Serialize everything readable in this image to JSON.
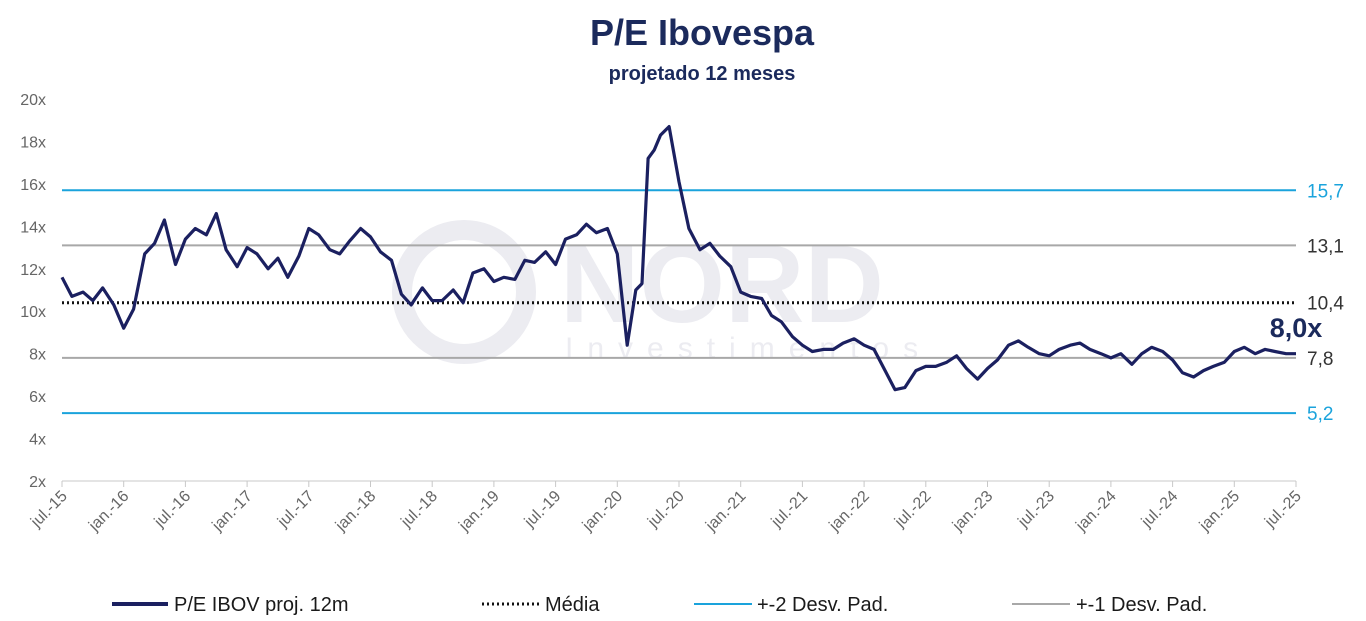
{
  "chart_data": {
    "type": "line",
    "title": "P/E Ibovespa",
    "subtitle": "projetado 12 meses",
    "ylim": [
      2,
      20
    ],
    "yticks": [
      "20x",
      "18x",
      "16x",
      "14x",
      "12x",
      "10x",
      "8x",
      "6x",
      "4x",
      "2x"
    ],
    "xticks": [
      "jul.-15",
      "jan.-16",
      "jul.-16",
      "jan.-17",
      "jul.-17",
      "jan.-18",
      "jul.-18",
      "jan.-19",
      "jul.-19",
      "jan.-20",
      "jul.-20",
      "jan.-21",
      "jul.-21",
      "jan.-22",
      "jul.-22",
      "jan.-23",
      "jul.-23",
      "jan.-24",
      "jul.-24",
      "jan.-25",
      "jul.-25"
    ],
    "grid": false,
    "legend_position": "bottom",
    "series": [
      {
        "name": "P/E IBOV proj. 12m",
        "color": "#1b2060",
        "x": [
          2015.5,
          2015.58,
          2015.67,
          2015.75,
          2015.83,
          2015.92,
          2016.0,
          2016.08,
          2016.17,
          2016.25,
          2016.33,
          2016.42,
          2016.5,
          2016.58,
          2016.67,
          2016.75,
          2016.83,
          2016.92,
          2017.0,
          2017.08,
          2017.17,
          2017.25,
          2017.33,
          2017.42,
          2017.5,
          2017.58,
          2017.67,
          2017.75,
          2017.83,
          2017.92,
          2018.0,
          2018.08,
          2018.17,
          2018.25,
          2018.33,
          2018.42,
          2018.5,
          2018.58,
          2018.67,
          2018.75,
          2018.83,
          2018.92,
          2019.0,
          2019.08,
          2019.17,
          2019.25,
          2019.33,
          2019.42,
          2019.5,
          2019.58,
          2019.67,
          2019.75,
          2019.83,
          2019.92,
          2020.0,
          2020.08,
          2020.15,
          2020.2,
          2020.25,
          2020.3,
          2020.35,
          2020.42,
          2020.5,
          2020.58,
          2020.67,
          2020.75,
          2020.83,
          2020.92,
          2021.0,
          2021.08,
          2021.17,
          2021.25,
          2021.33,
          2021.42,
          2021.5,
          2021.58,
          2021.67,
          2021.75,
          2021.83,
          2021.92,
          2022.0,
          2022.08,
          2022.17,
          2022.25,
          2022.33,
          2022.42,
          2022.5,
          2022.58,
          2022.67,
          2022.75,
          2022.83,
          2022.92,
          2023.0,
          2023.08,
          2023.17,
          2023.25,
          2023.33,
          2023.42,
          2023.5,
          2023.58,
          2023.67,
          2023.75,
          2023.83,
          2023.92,
          2024.0,
          2024.08,
          2024.17,
          2024.25,
          2024.33,
          2024.42,
          2024.5,
          2024.58,
          2024.67,
          2024.75,
          2024.83,
          2024.92,
          2025.0,
          2025.08,
          2025.17,
          2025.25,
          2025.33,
          2025.42,
          2025.5
        ],
        "y": [
          11.6,
          10.7,
          10.9,
          10.5,
          11.1,
          10.3,
          9.2,
          10.1,
          12.7,
          13.2,
          14.3,
          12.2,
          13.4,
          13.9,
          13.6,
          14.6,
          12.9,
          12.1,
          13.0,
          12.7,
          12.0,
          12.5,
          11.6,
          12.6,
          13.9,
          13.6,
          12.9,
          12.7,
          13.3,
          13.9,
          13.5,
          12.8,
          12.4,
          10.8,
          10.3,
          11.1,
          10.5,
          10.5,
          11.0,
          10.4,
          11.8,
          12.0,
          11.4,
          11.6,
          11.5,
          12.4,
          12.3,
          12.8,
          12.2,
          13.4,
          13.6,
          14.1,
          13.7,
          13.9,
          12.7,
          8.4,
          11.0,
          11.3,
          17.2,
          17.6,
          18.3,
          18.7,
          16.1,
          13.9,
          12.9,
          13.2,
          12.6,
          12.1,
          10.9,
          10.7,
          10.6,
          9.8,
          9.5,
          8.8,
          8.4,
          8.1,
          8.2,
          8.2,
          8.5,
          8.7,
          8.4,
          8.2,
          7.2,
          6.3,
          6.4,
          7.2,
          7.4,
          7.4,
          7.6,
          7.9,
          7.3,
          6.8,
          7.3,
          7.7,
          8.4,
          8.6,
          8.3,
          8.0,
          7.9,
          8.2,
          8.4,
          8.5,
          8.2,
          8.0,
          7.8,
          8.0,
          7.5,
          8.0,
          8.3,
          8.1,
          7.7,
          7.1,
          6.9,
          7.2,
          7.4,
          7.6,
          8.1,
          8.3,
          8.0,
          8.2,
          8.1,
          8.0,
          8.0
        ]
      },
      {
        "name": "Média",
        "color": "#111111",
        "style": "dotted",
        "value": 10.4
      },
      {
        "name": "+-2 Desv. Pad.",
        "color": "#1aa3dc",
        "values": [
          15.7,
          5.2
        ]
      },
      {
        "name": "+-1 Desv. Pad.",
        "color": "#a8a8a8",
        "values": [
          13.1,
          7.8
        ]
      }
    ],
    "reference_labels": [
      "15,7",
      "13,1",
      "10,4",
      "7,8",
      "5,2"
    ],
    "last_value_label": "8,0x"
  },
  "watermark": {
    "brand": "NORD",
    "sub": "Investimentos"
  }
}
